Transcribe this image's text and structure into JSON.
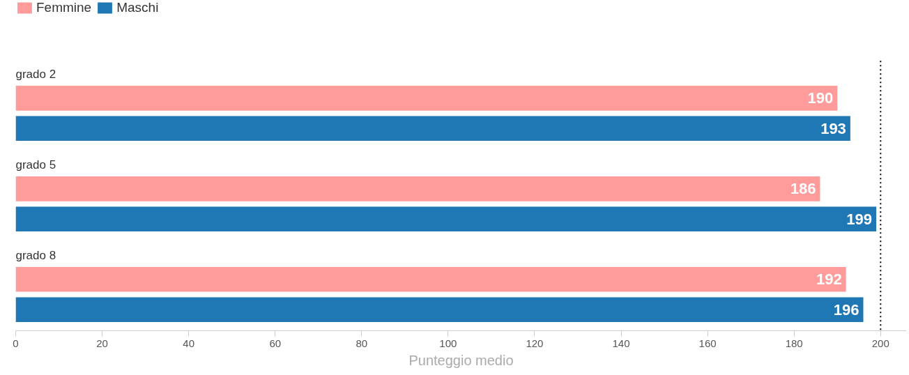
{
  "chart_data": {
    "type": "bar",
    "orientation": "horizontal",
    "categories": [
      "grado 2",
      "grado 5",
      "grado 8"
    ],
    "series": [
      {
        "name": "Femmine",
        "color": "#ff9b9a",
        "values": [
          190,
          186,
          192
        ]
      },
      {
        "name": "Maschi",
        "color": "#1f77b4",
        "values": [
          193,
          199,
          196
        ]
      }
    ],
    "xlabel": "Punteggio medio",
    "xlim": [
      0,
      206
    ],
    "xticks": [
      0,
      20,
      40,
      60,
      80,
      100,
      120,
      140,
      160,
      180,
      200
    ],
    "ref_lines": [
      {
        "axis": "x",
        "value": 200,
        "label": null,
        "color": "#000000",
        "line_style": "dotted"
      }
    ],
    "data_labels": true,
    "legend": "top left",
    "grid": false
  }
}
